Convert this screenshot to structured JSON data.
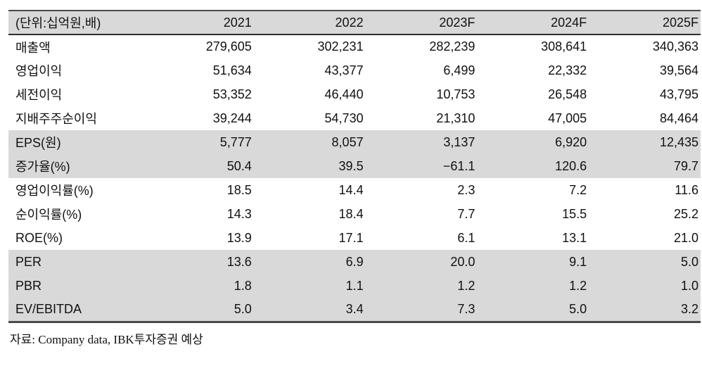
{
  "table": {
    "unit_label": "(단위:십억원,배)",
    "columns": [
      "2021",
      "2022",
      "2023F",
      "2024F",
      "2025F"
    ],
    "rows": [
      {
        "label": "매출액",
        "values": [
          "279,605",
          "302,231",
          "282,239",
          "308,641",
          "340,363"
        ],
        "shaded": false
      },
      {
        "label": "영업이익",
        "values": [
          "51,634",
          "43,377",
          "6,499",
          "22,332",
          "39,564"
        ],
        "shaded": false
      },
      {
        "label": "세전이익",
        "values": [
          "53,352",
          "46,440",
          "10,753",
          "26,548",
          "43,795"
        ],
        "shaded": false
      },
      {
        "label": "지배주주순이익",
        "values": [
          "39,244",
          "54,730",
          "21,310",
          "47,005",
          "84,464"
        ],
        "shaded": false
      },
      {
        "label": "EPS(원)",
        "values": [
          "5,777",
          "8,057",
          "3,137",
          "6,920",
          "12,435"
        ],
        "shaded": true
      },
      {
        "label": "증가율(%)",
        "values": [
          "50.4",
          "39.5",
          "−61.1",
          "120.6",
          "79.7"
        ],
        "shaded": true
      },
      {
        "label": "영업이익률(%)",
        "values": [
          "18.5",
          "14.4",
          "2.3",
          "7.2",
          "11.6"
        ],
        "shaded": false
      },
      {
        "label": "순이익률(%)",
        "values": [
          "14.3",
          "18.4",
          "7.7",
          "15.5",
          "25.2"
        ],
        "shaded": false
      },
      {
        "label": "ROE(%)",
        "values": [
          "13.9",
          "17.1",
          "6.1",
          "13.1",
          "21.0"
        ],
        "shaded": false
      },
      {
        "label": "PER",
        "values": [
          "13.6",
          "6.9",
          "20.0",
          "9.1",
          "5.0"
        ],
        "shaded": true
      },
      {
        "label": "PBR",
        "values": [
          "1.8",
          "1.1",
          "1.2",
          "1.2",
          "1.0"
        ],
        "shaded": true
      },
      {
        "label": "EV/EBITDA",
        "values": [
          "5.0",
          "3.4",
          "7.3",
          "5.0",
          "3.2"
        ],
        "shaded": true
      }
    ],
    "source_note": "자료: Company data, IBK투자증권 예상"
  },
  "colors": {
    "header_bg": "#d9d9d9",
    "shaded_row_bg": "#d9d9d9",
    "rule_dark": "#4a4a4a",
    "text": "#111111"
  }
}
